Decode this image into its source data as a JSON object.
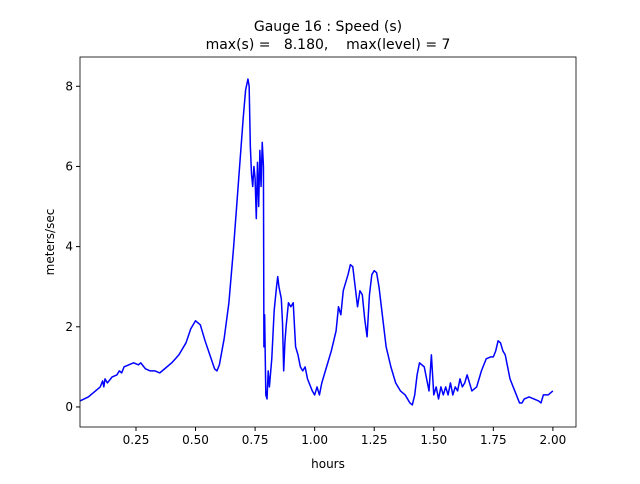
{
  "chart_data": {
    "type": "line",
    "title": "Gauge 16 : Speed (s)",
    "subtitle": "max(s) =   8.180,    max(level) = 7",
    "x_label": "hours",
    "y_label": "meters/sec",
    "xlim": [
      0.015,
      2.097
    ],
    "ylim": [
      -0.5,
      8.73
    ],
    "xticks": [
      {
        "value": 0.25,
        "label": "0.25"
      },
      {
        "value": 0.5,
        "label": "0.50"
      },
      {
        "value": 0.75,
        "label": "0.75"
      },
      {
        "value": 1.0,
        "label": "1.00"
      },
      {
        "value": 1.25,
        "label": "1.25"
      },
      {
        "value": 1.5,
        "label": "1.50"
      },
      {
        "value": 1.75,
        "label": "1.75"
      },
      {
        "value": 2.0,
        "label": "2.00"
      }
    ],
    "yticks": [
      0,
      2,
      4,
      6,
      8
    ],
    "series": [
      {
        "name": "s",
        "color": "#0000ff",
        "x": [
          0.015,
          0.05,
          0.08,
          0.1,
          0.11,
          0.115,
          0.12,
          0.13,
          0.15,
          0.17,
          0.18,
          0.19,
          0.2,
          0.22,
          0.24,
          0.26,
          0.27,
          0.29,
          0.31,
          0.33,
          0.35,
          0.37,
          0.4,
          0.43,
          0.46,
          0.48,
          0.5,
          0.52,
          0.54,
          0.56,
          0.58,
          0.59,
          0.6,
          0.62,
          0.64,
          0.66,
          0.68,
          0.7,
          0.71,
          0.72,
          0.725,
          0.73,
          0.735,
          0.74,
          0.745,
          0.75,
          0.755,
          0.76,
          0.765,
          0.77,
          0.775,
          0.78,
          0.785,
          0.787,
          0.79,
          0.795,
          0.8,
          0.805,
          0.81,
          0.82,
          0.83,
          0.84,
          0.845,
          0.85,
          0.86,
          0.865,
          0.87,
          0.875,
          0.88,
          0.89,
          0.9,
          0.91,
          0.92,
          0.93,
          0.94,
          0.95,
          0.96,
          0.97,
          0.98,
          0.99,
          1.0,
          1.01,
          1.02,
          1.03,
          1.04,
          1.05,
          1.07,
          1.09,
          1.1,
          1.11,
          1.12,
          1.14,
          1.15,
          1.16,
          1.17,
          1.18,
          1.19,
          1.2,
          1.21,
          1.22,
          1.23,
          1.24,
          1.25,
          1.26,
          1.27,
          1.28,
          1.29,
          1.3,
          1.32,
          1.34,
          1.36,
          1.38,
          1.4,
          1.41,
          1.42,
          1.43,
          1.44,
          1.46,
          1.47,
          1.48,
          1.49,
          1.5,
          1.51,
          1.52,
          1.53,
          1.54,
          1.55,
          1.56,
          1.57,
          1.58,
          1.59,
          1.6,
          1.61,
          1.62,
          1.63,
          1.64,
          1.66,
          1.68,
          1.7,
          1.72,
          1.74,
          1.75,
          1.76,
          1.77,
          1.78,
          1.79,
          1.8,
          1.81,
          1.82,
          1.84,
          1.86,
          1.87,
          1.88,
          1.9,
          1.92,
          1.94,
          1.95,
          1.96,
          1.98,
          1.99,
          2.0
        ],
        "values": [
          0.15,
          0.25,
          0.4,
          0.5,
          0.65,
          0.5,
          0.7,
          0.6,
          0.75,
          0.8,
          0.9,
          0.85,
          1.0,
          1.05,
          1.1,
          1.05,
          1.1,
          0.95,
          0.9,
          0.9,
          0.85,
          0.95,
          1.1,
          1.3,
          1.6,
          1.95,
          2.15,
          2.05,
          1.65,
          1.3,
          0.95,
          0.9,
          1.05,
          1.7,
          2.6,
          4.0,
          5.6,
          7.2,
          7.9,
          8.18,
          8.0,
          6.5,
          5.8,
          5.5,
          6.0,
          5.7,
          4.7,
          6.1,
          5.0,
          6.4,
          5.5,
          6.6,
          6.0,
          1.5,
          2.3,
          0.3,
          0.2,
          0.9,
          0.5,
          1.2,
          2.4,
          3.0,
          3.25,
          3.0,
          2.7,
          2.1,
          0.9,
          1.6,
          2.0,
          2.6,
          2.5,
          2.6,
          1.5,
          1.3,
          1.0,
          0.9,
          1.0,
          0.7,
          0.55,
          0.4,
          0.3,
          0.5,
          0.3,
          0.6,
          0.8,
          1.0,
          1.4,
          1.9,
          2.5,
          2.3,
          2.9,
          3.3,
          3.55,
          3.5,
          3.0,
          2.5,
          2.9,
          2.8,
          2.2,
          1.75,
          2.8,
          3.3,
          3.4,
          3.35,
          3.0,
          2.5,
          2.0,
          1.5,
          1.0,
          0.6,
          0.4,
          0.3,
          0.1,
          0.05,
          0.3,
          0.8,
          1.1,
          1.0,
          0.7,
          0.4,
          1.3,
          0.3,
          0.5,
          0.2,
          0.5,
          0.3,
          0.5,
          0.3,
          0.6,
          0.3,
          0.5,
          0.4,
          0.7,
          0.5,
          0.6,
          0.8,
          0.4,
          0.5,
          0.9,
          1.2,
          1.25,
          1.25,
          1.4,
          1.65,
          1.6,
          1.4,
          1.3,
          1.0,
          0.7,
          0.4,
          0.1,
          0.1,
          0.2,
          0.25,
          0.2,
          0.15,
          0.1,
          0.3,
          0.3,
          0.35,
          0.4
        ]
      }
    ]
  }
}
